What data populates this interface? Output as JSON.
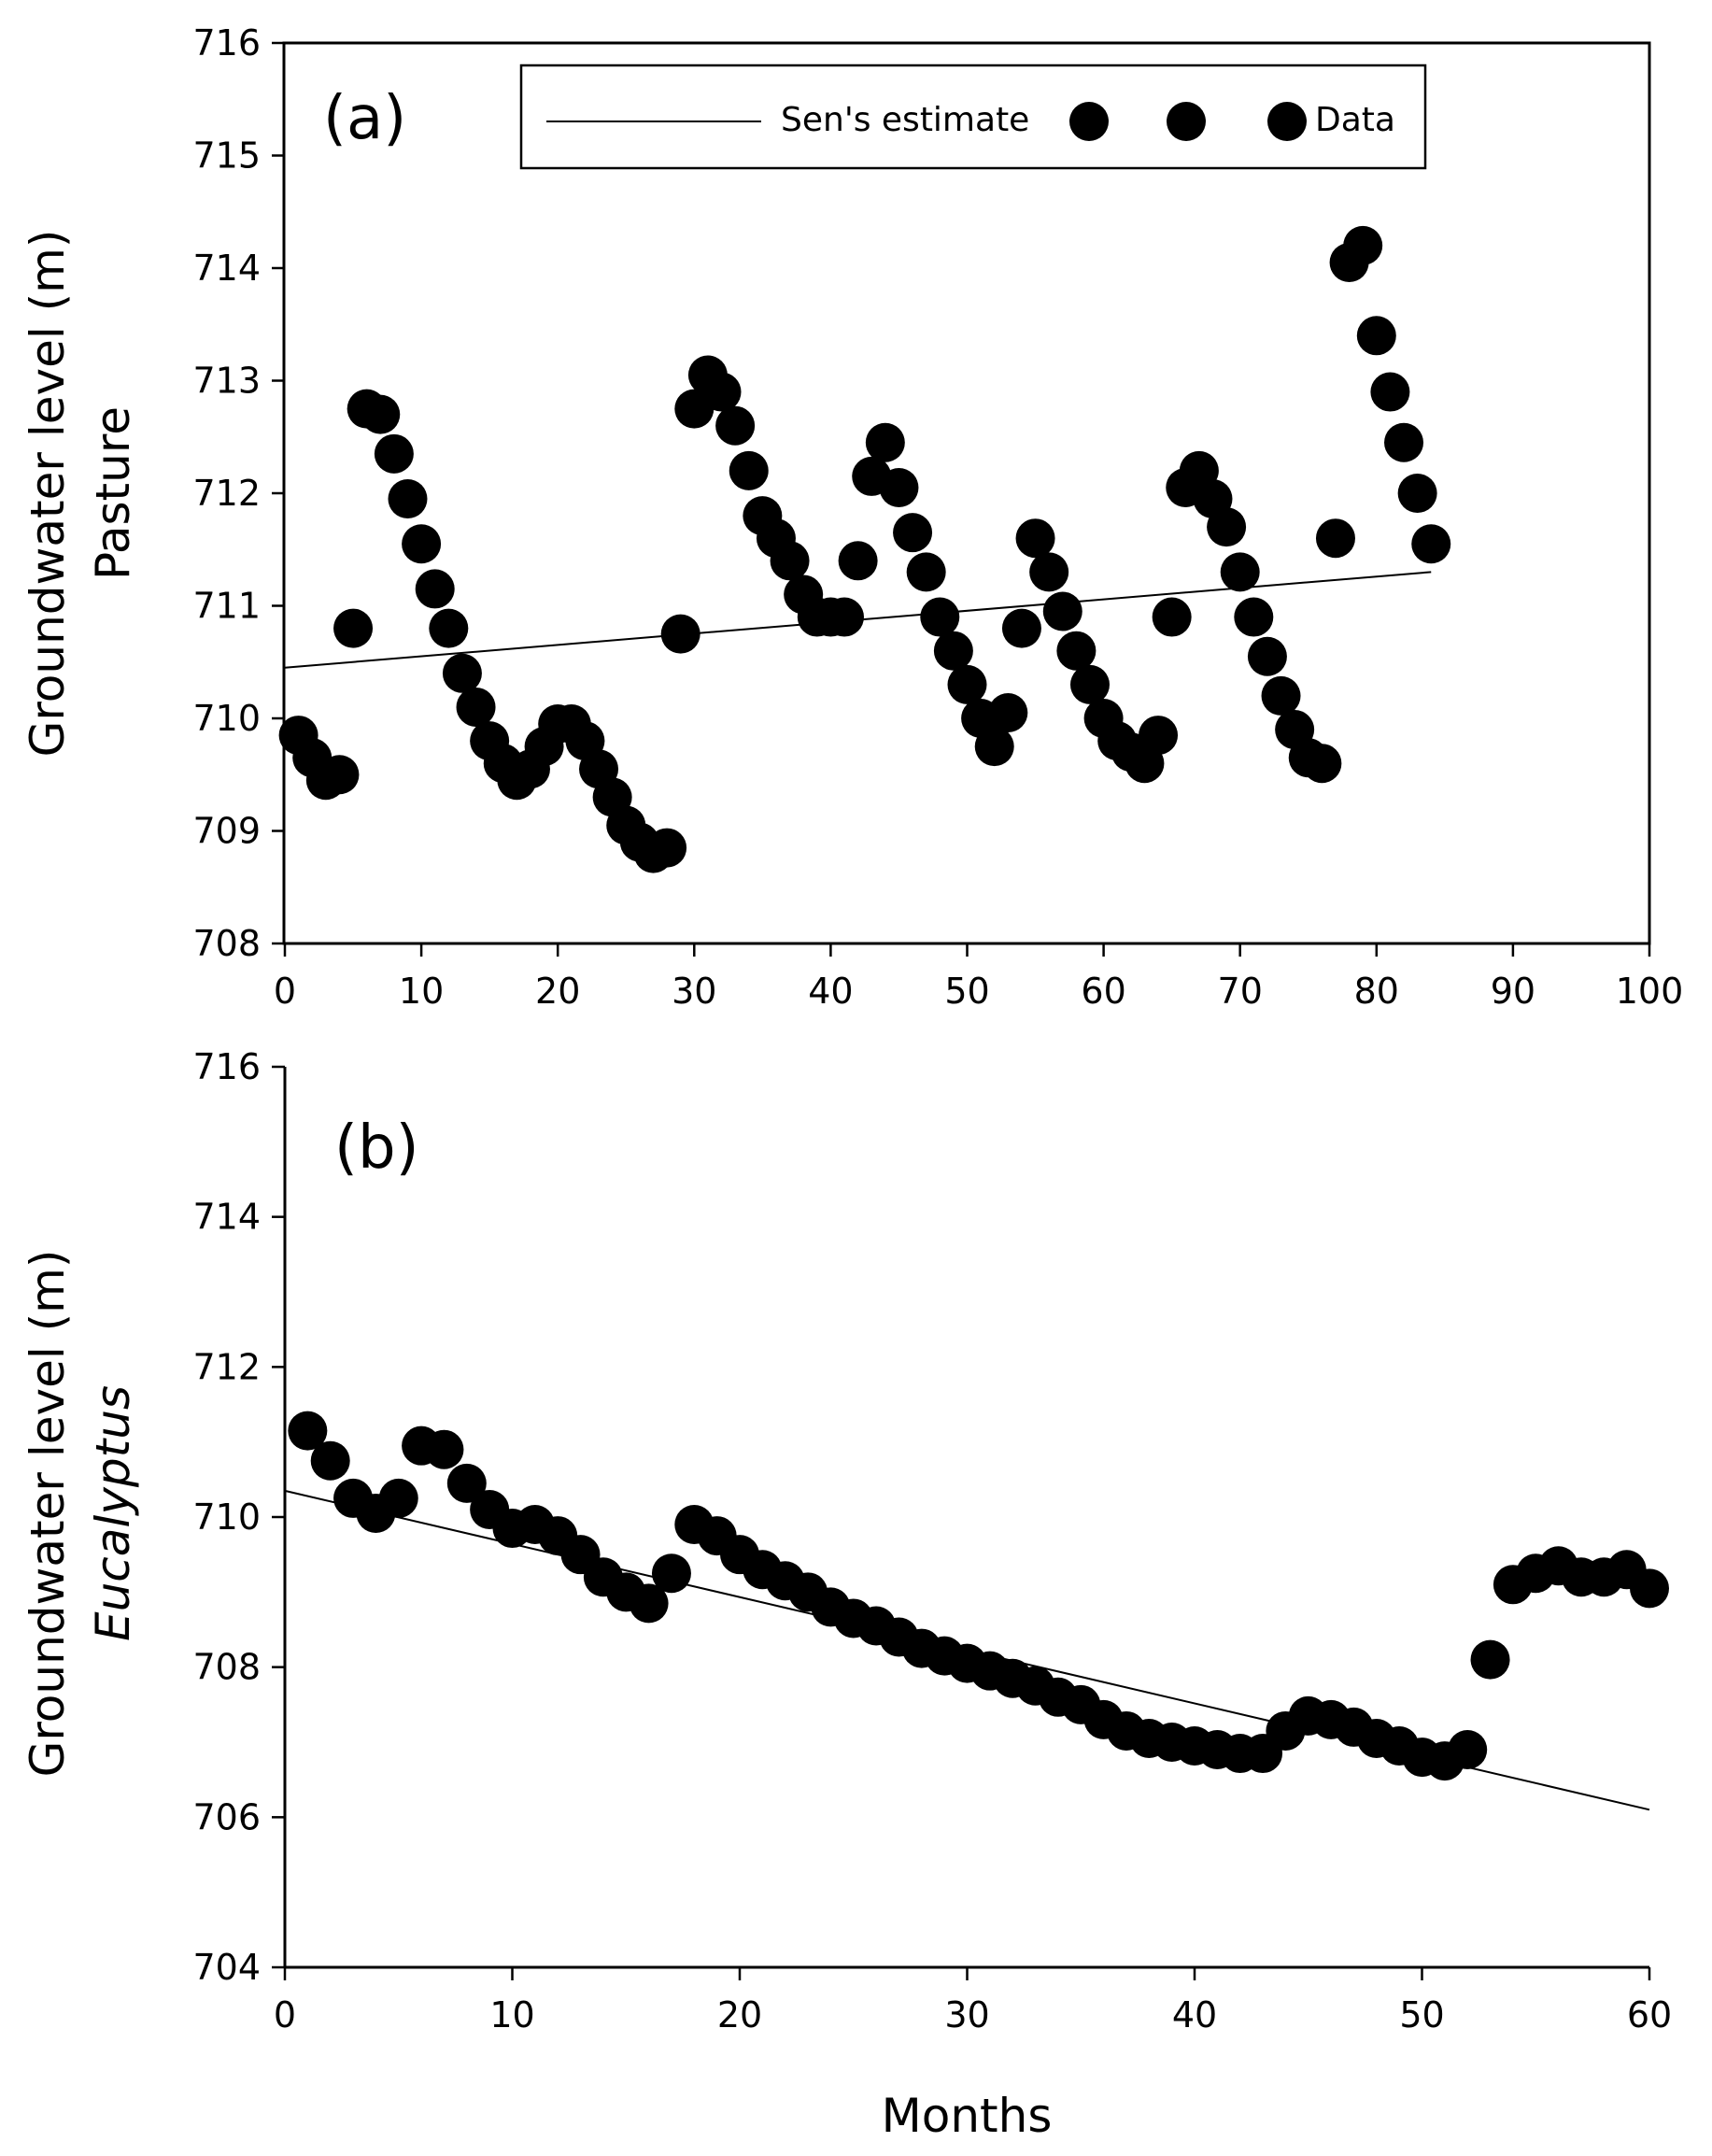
{
  "figure": {
    "xlabel": "Months"
  },
  "chart_data": [
    {
      "type": "scatter",
      "panel_label": "(a)",
      "ylabel_line1": "Groundwater level (m)",
      "ylabel_line2": "Pasture",
      "xlim": [
        0,
        100
      ],
      "ylim": [
        708,
        716
      ],
      "xticks": [
        0,
        10,
        20,
        30,
        40,
        50,
        60,
        70,
        80,
        90,
        100
      ],
      "yticks": [
        708,
        709,
        710,
        711,
        712,
        713,
        714,
        715,
        716
      ],
      "legend": {
        "placement": "top-center",
        "line_label": "Sen's estimate",
        "points_label": "Data"
      },
      "trend": {
        "name": "Sen's estimate",
        "x": [
          0,
          84
        ],
        "y": [
          710.45,
          711.3
        ]
      },
      "series": [
        {
          "name": "Data",
          "x": [
            1,
            2,
            3,
            4,
            5,
            6,
            7,
            8,
            9,
            10,
            11,
            12,
            13,
            14,
            15,
            16,
            17,
            18,
            19,
            20,
            21,
            22,
            23,
            24,
            25,
            26,
            27,
            28,
            29,
            30,
            31,
            32,
            33,
            34,
            35,
            36,
            37,
            38,
            39,
            40,
            41,
            42,
            43,
            44,
            45,
            46,
            47,
            48,
            49,
            50,
            51,
            52,
            53,
            54,
            55,
            56,
            57,
            58,
            59,
            60,
            61,
            62,
            63,
            64,
            65,
            66,
            67,
            68,
            69,
            70,
            71,
            72,
            73,
            74,
            75,
            76,
            77,
            78,
            79,
            80,
            81,
            82,
            83,
            84
          ],
          "y": [
            709.85,
            709.65,
            709.45,
            709.5,
            710.8,
            712.75,
            712.7,
            712.35,
            711.95,
            711.55,
            711.15,
            710.8,
            710.4,
            710.1,
            709.8,
            709.6,
            709.45,
            709.55,
            709.75,
            709.95,
            709.95,
            709.8,
            709.55,
            709.3,
            709.05,
            708.9,
            708.8,
            708.85,
            710.75,
            712.75,
            713.05,
            712.9,
            712.6,
            712.2,
            711.8,
            711.6,
            711.4,
            711.1,
            710.9,
            710.9,
            710.9,
            711.4,
            712.15,
            712.45,
            712.05,
            711.65,
            711.3,
            710.9,
            710.6,
            710.3,
            710.0,
            709.75,
            710.05,
            710.8,
            711.6,
            711.3,
            710.95,
            710.6,
            710.3,
            710.0,
            709.8,
            709.7,
            709.6,
            709.85,
            710.9,
            712.05,
            712.2,
            711.95,
            711.7,
            711.3,
            710.9,
            710.55,
            710.2,
            709.9,
            709.65,
            709.6,
            711.6,
            714.05,
            714.2,
            713.4,
            712.9,
            712.45,
            712.0,
            711.55
          ]
        }
      ]
    },
    {
      "type": "scatter",
      "panel_label": "(b)",
      "ylabel_line1": "Groundwater level (m)",
      "ylabel_line2": "Eucalyptus",
      "xlim": [
        0,
        60
      ],
      "ylim": [
        704,
        716
      ],
      "xticks": [
        0,
        10,
        20,
        30,
        40,
        50,
        60
      ],
      "yticks": [
        704,
        706,
        708,
        710,
        712,
        714,
        716
      ],
      "trend": {
        "name": "Sen's estimate",
        "x": [
          0,
          60
        ],
        "y": [
          710.35,
          706.1
        ]
      },
      "series": [
        {
          "name": "Data",
          "x": [
            1,
            2,
            3,
            4,
            5,
            6,
            7,
            8,
            9,
            10,
            11,
            12,
            13,
            14,
            15,
            16,
            17,
            18,
            19,
            20,
            21,
            22,
            23,
            24,
            25,
            26,
            27,
            28,
            29,
            30,
            31,
            32,
            33,
            34,
            35,
            36,
            37,
            38,
            39,
            40,
            41,
            42,
            43,
            44,
            45,
            46,
            47,
            48,
            49,
            50,
            51,
            52,
            53,
            54,
            55,
            56,
            57,
            58,
            59,
            60
          ],
          "y": [
            711.15,
            710.75,
            710.25,
            710.05,
            710.25,
            710.95,
            710.9,
            710.45,
            710.1,
            709.85,
            709.9,
            709.75,
            709.5,
            709.2,
            709.0,
            708.85,
            709.25,
            709.9,
            709.75,
            709.5,
            709.3,
            709.15,
            709.0,
            708.8,
            708.65,
            708.55,
            708.4,
            708.25,
            708.15,
            708.05,
            707.95,
            707.85,
            707.75,
            707.6,
            707.5,
            707.3,
            707.15,
            707.05,
            707.0,
            706.95,
            706.9,
            706.85,
            706.85,
            707.15,
            707.35,
            707.3,
            707.2,
            707.05,
            706.95,
            706.8,
            706.75,
            706.9,
            708.1,
            709.1,
            709.25,
            709.35,
            709.2,
            709.2,
            709.3,
            709.05
          ]
        }
      ]
    }
  ]
}
